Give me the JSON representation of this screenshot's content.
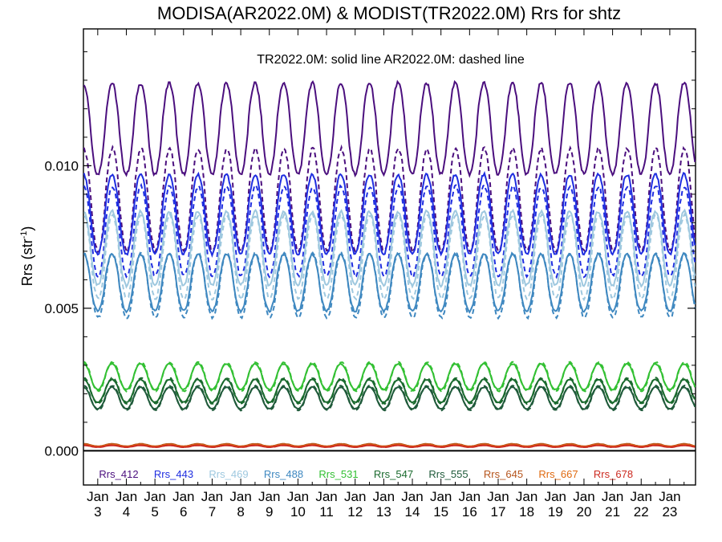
{
  "chart_data": {
    "type": "line",
    "title": "MODISA(AR2022.0M) & MODIST(TR2022.0M)  Rrs for shtz",
    "annotation": "TR2022.0M: solid line   AR2022.0M: dashed line",
    "ylabel": "Rrs (str",
    "ylabel_sup": "-1",
    "ylabel_close": ")",
    "ylim": [
      -0.0012,
      0.0148
    ],
    "y_ticks": [
      0.0,
      0.005,
      0.01
    ],
    "y_tick_labels": [
      "0.000",
      "0.005",
      "0.010"
    ],
    "x_label_top": [
      "Jan",
      "Jan",
      "Jan",
      "Jan",
      "Jan",
      "Jan",
      "Jan",
      "Jan",
      "Jan",
      "Jan",
      "Jan",
      "Jan",
      "Jan",
      "Jan",
      "Jan",
      "Jan",
      "Jan",
      "Jan",
      "Jan",
      "Jan",
      "Jan"
    ],
    "x_label_bottom": [
      "3",
      "4",
      "5",
      "6",
      "7",
      "8",
      "9",
      "10",
      "11",
      "12",
      "13",
      "14",
      "15",
      "16",
      "17",
      "18",
      "19",
      "20",
      "21",
      "22",
      "23"
    ],
    "x_day_range": [
      2.5,
      23.9
    ],
    "zero_line": true,
    "legend": [
      "Rrs_412",
      "Rrs_443",
      "Rrs_469",
      "Rrs_488",
      "Rrs_531",
      "Rrs_547",
      "Rrs_555",
      "Rrs_645",
      "Rrs_667",
      "Rrs_678"
    ],
    "series": [
      {
        "name": "Rrs_412",
        "color": "#4b0f7e",
        "mean_day": 0.0113,
        "mean_night": 0.0088,
        "amplitude": 0.0016
      },
      {
        "name": "Rrs_443",
        "color": "#1f2ee0",
        "mean_day": 0.0083,
        "mean_night": 0.0077,
        "amplitude": 0.0014
      },
      {
        "name": "Rrs_469",
        "color": "#9ec8df",
        "mean_day": 0.0071,
        "mean_night": 0.0068,
        "amplitude": 0.0013
      },
      {
        "name": "Rrs_488",
        "color": "#3f88c0",
        "mean_day": 0.0059,
        "mean_night": 0.0058,
        "amplitude": 0.001
      },
      {
        "name": "Rrs_531",
        "color": "#33c033",
        "mean_day": 0.0026,
        "mean_night": 0.0026,
        "amplitude": 0.00045
      },
      {
        "name": "Rrs_547",
        "color": "#1a6a2e",
        "mean_day": 0.0021,
        "mean_night": 0.0021,
        "amplitude": 0.0004
      },
      {
        "name": "Rrs_555",
        "color": "#1f5a3a",
        "mean_day": 0.00185,
        "mean_night": 0.00185,
        "amplitude": 0.00038
      },
      {
        "name": "Rrs_645",
        "color": "#b5541c",
        "mean_day": 0.0002,
        "mean_night": 0.0002,
        "amplitude": 4e-05
      },
      {
        "name": "Rrs_667",
        "color": "#e06a10",
        "mean_day": 0.00018,
        "mean_night": 0.00018,
        "amplitude": 3e-05
      },
      {
        "name": "Rrs_678",
        "color": "#cc2a20",
        "mean_day": 0.00016,
        "mean_night": 0.00016,
        "amplitude": 3e-05
      }
    ]
  }
}
